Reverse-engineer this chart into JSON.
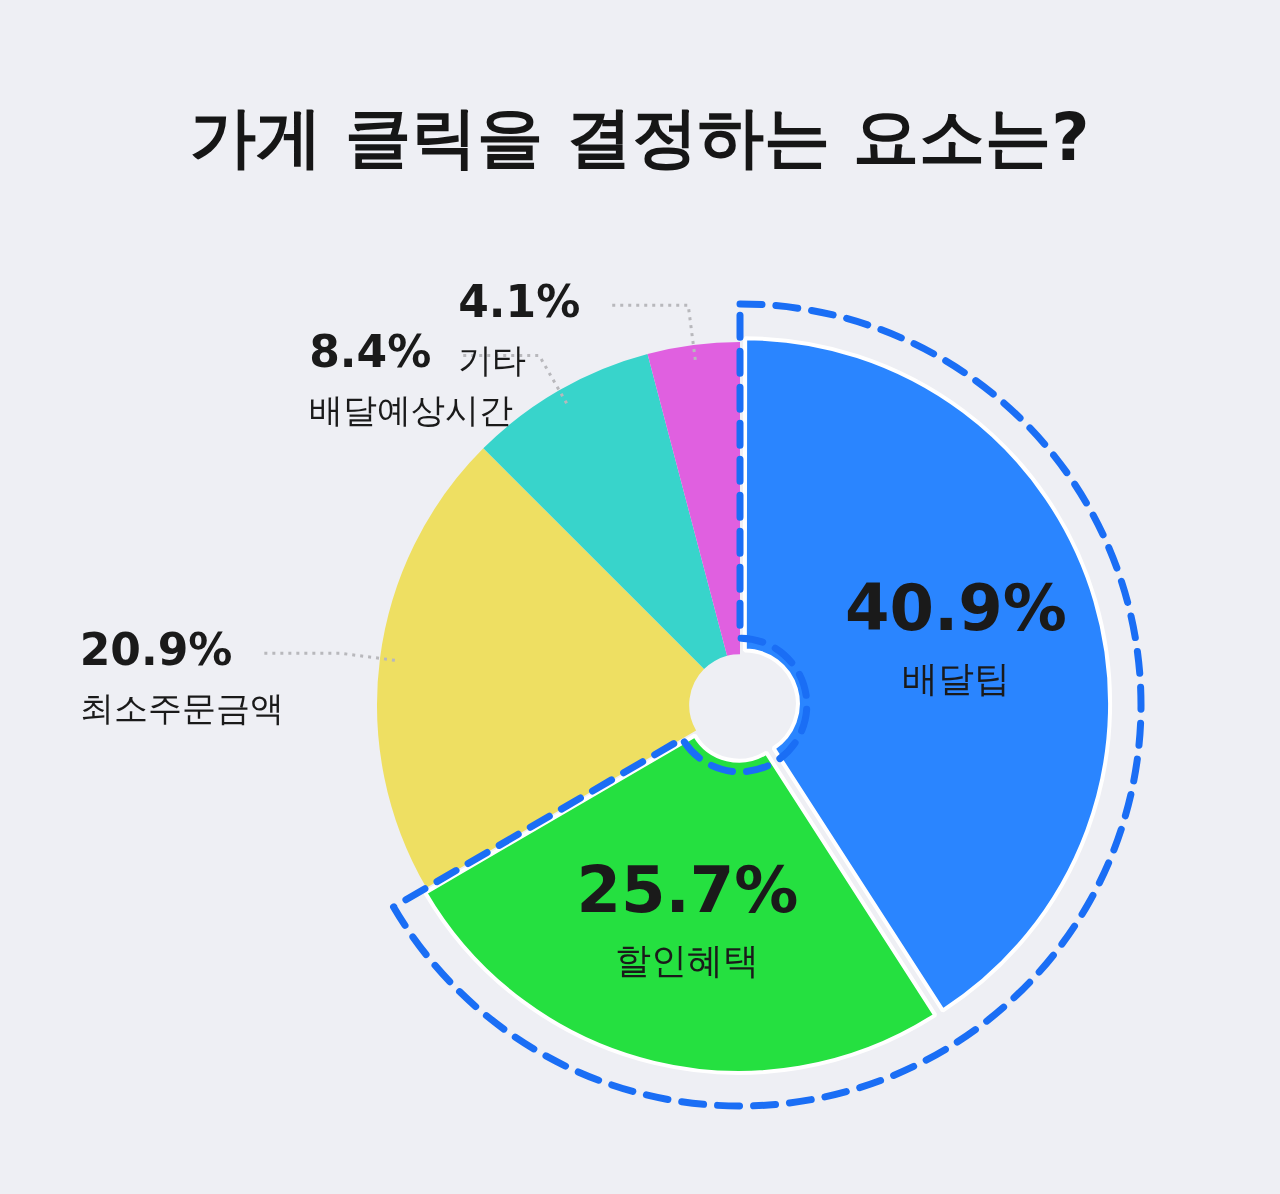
{
  "chart_data": {
    "type": "donut",
    "title": "가게 클릭을 결정하는 요소는?",
    "categories": [
      "배달팁",
      "할인혜택",
      "최소주문금액",
      "배달예상시간",
      "기타"
    ],
    "values": [
      40.9,
      25.7,
      20.9,
      8.4,
      4.1
    ],
    "colors": [
      "#2a85ff",
      "#25e040",
      "#eedf62",
      "#38d4cb",
      "#e060e0"
    ],
    "value_labels": [
      "40.9%",
      "25.7%",
      "20.9%",
      "8.4%",
      "4.1%"
    ],
    "legend": false
  }
}
